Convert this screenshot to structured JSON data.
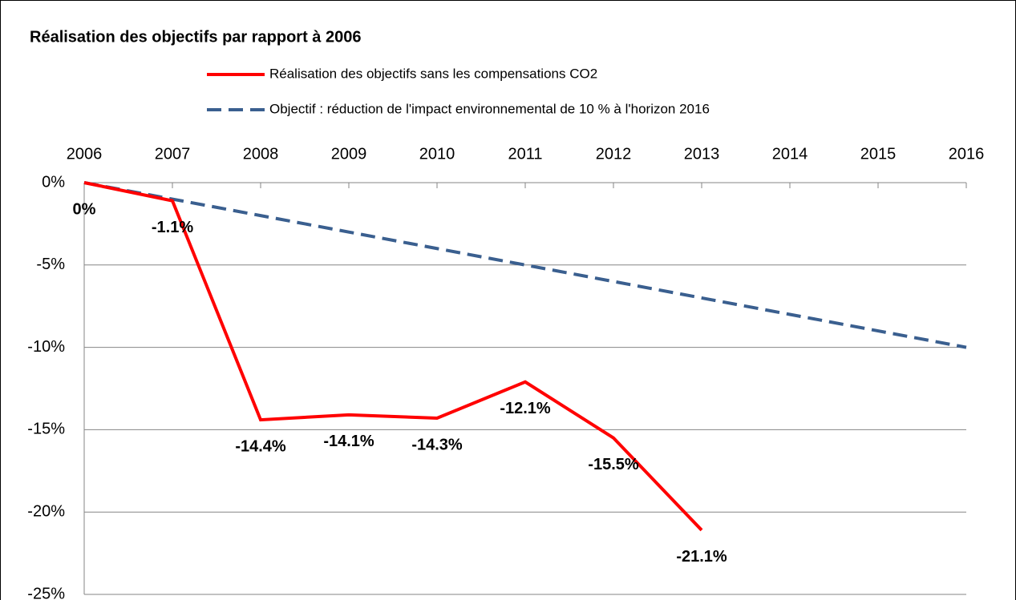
{
  "chart_data": {
    "type": "line",
    "title": "Réalisation des objectifs par rapport à 2006",
    "categories": [
      "2006",
      "2007",
      "2008",
      "2009",
      "2010",
      "2011",
      "2012",
      "2013",
      "2014",
      "2015",
      "2016"
    ],
    "series": [
      {
        "name": "Réalisation des objectifs sans les compensations CO2",
        "color": "#ff0000",
        "dashed": false,
        "values": [
          0,
          -1.1,
          -14.4,
          -14.1,
          -14.3,
          -12.1,
          -15.5,
          -21.1,
          null,
          null,
          null
        ],
        "value_labels": [
          "0%",
          "-1.1%",
          "-14.4%",
          "-14.1%",
          "-14.3%",
          "-12.1%",
          "-15.5%",
          "-21.1%",
          null,
          null,
          null
        ]
      },
      {
        "name": "Objectif : réduction de l'impact environnemental de 10 % à l'horizon 2016",
        "color": "#3a5f8f",
        "dashed": true,
        "values": [
          0,
          -1,
          -2,
          -3,
          -4,
          -5,
          -6,
          -7,
          -8,
          -9,
          -10
        ]
      }
    ],
    "ylim": [
      -25,
      0
    ],
    "yticks": [
      {
        "value": 0,
        "label": "0%"
      },
      {
        "value": -5,
        "label": "-5%"
      },
      {
        "value": -10,
        "label": "-10%"
      },
      {
        "value": -15,
        "label": "-15%"
      },
      {
        "value": -20,
        "label": "-20%"
      },
      {
        "value": -25,
        "label": "-25%"
      }
    ],
    "grid": true
  }
}
